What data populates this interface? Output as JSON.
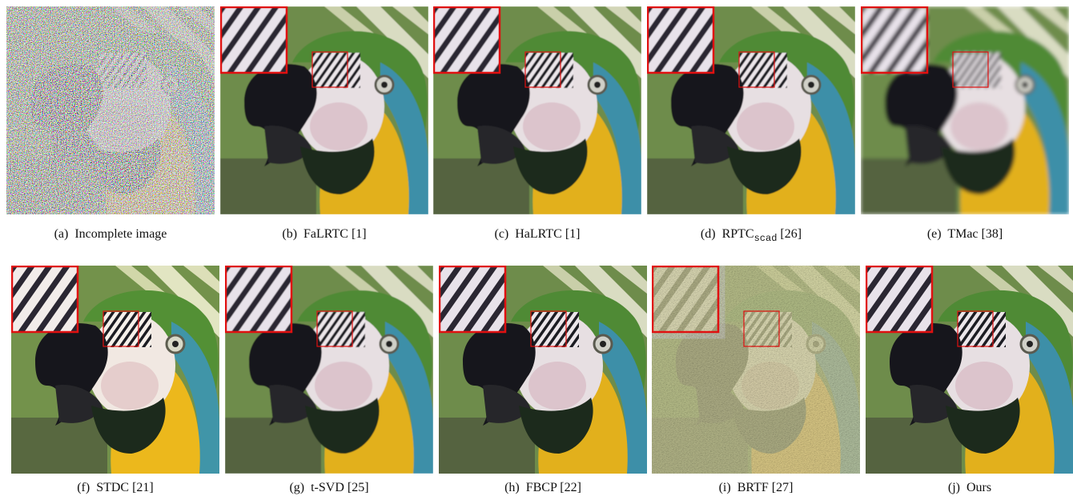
{
  "figure": {
    "panels": [
      {
        "label": "(a)",
        "text": "Incomplete image",
        "style": "incomplete"
      },
      {
        "label": "(b)",
        "text": "FaLRTC [1]",
        "style": "mild"
      },
      {
        "label": "(c)",
        "text": "HaLRTC [1]",
        "style": "mild"
      },
      {
        "label": "(d)",
        "text": "RPTC",
        "sub": "scad",
        "suffix": "[26]",
        "style": "mild"
      },
      {
        "label": "(e)",
        "text": "TMac [38]",
        "style": "blurry"
      },
      {
        "label": "(f)",
        "text": "STDC [21]",
        "style": "bright"
      },
      {
        "label": "(g)",
        "text": "t-SVD [25]",
        "style": "mild"
      },
      {
        "label": "(h)",
        "text": "FBCP [22]",
        "style": "clean"
      },
      {
        "label": "(i)",
        "text": "BRTF [27]",
        "style": "washed"
      },
      {
        "label": "(j)",
        "text": "Ours",
        "style": "clean"
      }
    ]
  }
}
